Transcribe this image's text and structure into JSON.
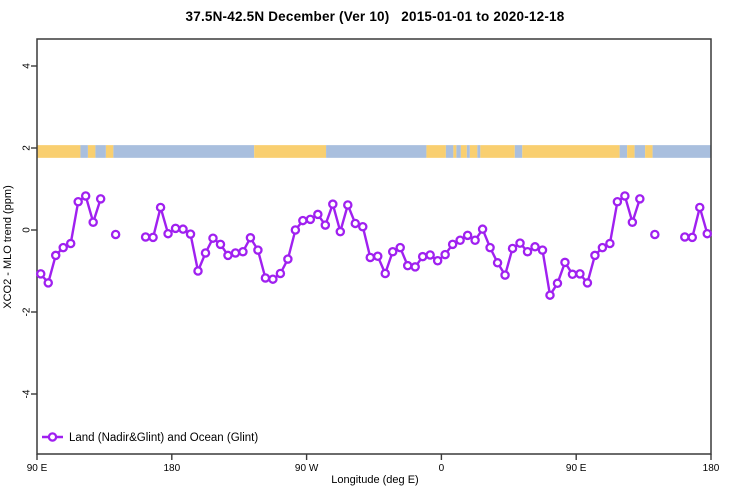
{
  "title": "37.5N-42.5N December (Ver 10)   2015-01-01 to 2020-12-18",
  "colors": {
    "series": "#A020F0",
    "marker_fill": "#ffffff",
    "land": "#F9CF70",
    "ocean": "#A9BFDE",
    "frame": "#3a3a3a",
    "text": "#000000",
    "background": "#ffffff"
  },
  "legend": {
    "label": "Land (Nadir&Glint) and Ocean (Glint)",
    "marker": "open-circle-on-line"
  },
  "chart_data": {
    "type": "line",
    "title": "37.5N-42.5N December (Ver 10)   2015-01-01 to 2020-12-18",
    "xlabel": "Longitude (deg E)",
    "ylabel": "XCO2 - MLO trend (ppm)",
    "axis_note": "x axis spans 450 degrees of longitude, wrapping 90E > 180 > 90W > 0 > 90E > 180",
    "xlim": [
      90,
      540
    ],
    "ylim": [
      -5.5,
      4.7
    ],
    "x_ticks": [
      {
        "lon": 90,
        "label": "90 E"
      },
      {
        "lon": 180,
        "label": "180"
      },
      {
        "lon": 270,
        "label": "90 W"
      },
      {
        "lon": 360,
        "label": "0"
      },
      {
        "lon": 450,
        "label": "90 E"
      },
      {
        "lon": 540,
        "label": "180"
      }
    ],
    "y_ticks": [
      {
        "value": -4,
        "label": "-4"
      },
      {
        "value": -2,
        "label": "-2"
      },
      {
        "value": 0,
        "label": "0"
      },
      {
        "value": 2,
        "label": "2"
      },
      {
        "value": 4,
        "label": "4"
      }
    ],
    "map_band": {
      "description": "land/ocean strip along the 37.5N-42.5N latitude band",
      "top_ppm": 2.07,
      "bottom_ppm": 1.76,
      "segments": [
        {
          "from": 90,
          "to": 119,
          "type": "land"
        },
        {
          "from": 119,
          "to": 124,
          "type": "ocean"
        },
        {
          "from": 124,
          "to": 129,
          "type": "land"
        },
        {
          "from": 129,
          "to": 136,
          "type": "ocean"
        },
        {
          "from": 136,
          "to": 141,
          "type": "land"
        },
        {
          "from": 141,
          "to": 235,
          "type": "ocean"
        },
        {
          "from": 235,
          "to": 283,
          "type": "land"
        },
        {
          "from": 283,
          "to": 350,
          "type": "ocean"
        },
        {
          "from": 350,
          "to": 363,
          "type": "land"
        },
        {
          "from": 363,
          "to": 368,
          "type": "ocean"
        },
        {
          "from": 368,
          "to": 370,
          "type": "land"
        },
        {
          "from": 370,
          "to": 373,
          "type": "ocean"
        },
        {
          "from": 373,
          "to": 377,
          "type": "land"
        },
        {
          "from": 377,
          "to": 379,
          "type": "ocean"
        },
        {
          "from": 379,
          "to": 384,
          "type": "land"
        },
        {
          "from": 384,
          "to": 386,
          "type": "ocean"
        },
        {
          "from": 386,
          "to": 409,
          "type": "land"
        },
        {
          "from": 409,
          "to": 414,
          "type": "ocean"
        },
        {
          "from": 414,
          "to": 479,
          "type": "land"
        },
        {
          "from": 479,
          "to": 484,
          "type": "ocean"
        },
        {
          "from": 484,
          "to": 489,
          "type": "land"
        },
        {
          "from": 489,
          "to": 496,
          "type": "ocean"
        },
        {
          "from": 496,
          "to": 501,
          "type": "land"
        },
        {
          "from": 501,
          "to": 540,
          "type": "ocean"
        }
      ]
    },
    "series": [
      {
        "name": "Land (Nadir&Glint) and Ocean (Glint)",
        "color": "#A020F0",
        "marker": "open-circle",
        "runs": [
          [
            {
              "lon": 92.5,
              "ppm": -1.07
            },
            {
              "lon": 97.5,
              "ppm": -1.29
            },
            {
              "lon": 102.5,
              "ppm": -0.62
            },
            {
              "lon": 107.5,
              "ppm": -0.43
            },
            {
              "lon": 112.5,
              "ppm": -0.33
            },
            {
              "lon": 117.5,
              "ppm": 0.69
            },
            {
              "lon": 122.5,
              "ppm": 0.83
            },
            {
              "lon": 127.5,
              "ppm": 0.19
            },
            {
              "lon": 132.5,
              "ppm": 0.76
            }
          ],
          [
            {
              "lon": 142.5,
              "ppm": -0.11
            }
          ],
          [
            {
              "lon": 162.5,
              "ppm": -0.17
            },
            {
              "lon": 167.5,
              "ppm": -0.18
            },
            {
              "lon": 172.5,
              "ppm": 0.55
            },
            {
              "lon": 177.5,
              "ppm": -0.09
            },
            {
              "lon": 182.5,
              "ppm": 0.04
            },
            {
              "lon": 187.5,
              "ppm": 0.02
            },
            {
              "lon": 192.5,
              "ppm": -0.1
            },
            {
              "lon": 197.5,
              "ppm": -1.0
            },
            {
              "lon": 202.5,
              "ppm": -0.56
            },
            {
              "lon": 207.5,
              "ppm": -0.2
            },
            {
              "lon": 212.5,
              "ppm": -0.35
            },
            {
              "lon": 217.5,
              "ppm": -0.62
            },
            {
              "lon": 222.5,
              "ppm": -0.56
            },
            {
              "lon": 227.5,
              "ppm": -0.53
            },
            {
              "lon": 232.5,
              "ppm": -0.19
            },
            {
              "lon": 237.5,
              "ppm": -0.49
            },
            {
              "lon": 242.5,
              "ppm": -1.17
            },
            {
              "lon": 247.5,
              "ppm": -1.2
            },
            {
              "lon": 252.5,
              "ppm": -1.06
            },
            {
              "lon": 257.5,
              "ppm": -0.71
            },
            {
              "lon": 262.5,
              "ppm": 0.0
            },
            {
              "lon": 267.5,
              "ppm": 0.23
            },
            {
              "lon": 272.5,
              "ppm": 0.26
            },
            {
              "lon": 277.5,
              "ppm": 0.38
            },
            {
              "lon": 282.5,
              "ppm": 0.12
            },
            {
              "lon": 287.5,
              "ppm": 0.63
            },
            {
              "lon": 292.5,
              "ppm": -0.04
            },
            {
              "lon": 297.5,
              "ppm": 0.61
            },
            {
              "lon": 302.5,
              "ppm": 0.16
            },
            {
              "lon": 307.5,
              "ppm": 0.08
            },
            {
              "lon": 312.5,
              "ppm": -0.67
            },
            {
              "lon": 317.5,
              "ppm": -0.64
            },
            {
              "lon": 322.5,
              "ppm": -1.06
            },
            {
              "lon": 327.5,
              "ppm": -0.53
            },
            {
              "lon": 332.5,
              "ppm": -0.43
            },
            {
              "lon": 337.5,
              "ppm": -0.87
            },
            {
              "lon": 342.5,
              "ppm": -0.9
            },
            {
              "lon": 347.5,
              "ppm": -0.65
            },
            {
              "lon": 352.5,
              "ppm": -0.61
            },
            {
              "lon": 357.5,
              "ppm": -0.75
            },
            {
              "lon": 362.5,
              "ppm": -0.6
            },
            {
              "lon": 367.5,
              "ppm": -0.35
            },
            {
              "lon": 372.5,
              "ppm": -0.25
            },
            {
              "lon": 377.5,
              "ppm": -0.13
            },
            {
              "lon": 382.5,
              "ppm": -0.25
            },
            {
              "lon": 387.5,
              "ppm": 0.02
            },
            {
              "lon": 392.5,
              "ppm": -0.43
            },
            {
              "lon": 397.5,
              "ppm": -0.8
            },
            {
              "lon": 402.5,
              "ppm": -1.1
            },
            {
              "lon": 407.5,
              "ppm": -0.45
            },
            {
              "lon": 412.5,
              "ppm": -0.32
            },
            {
              "lon": 417.5,
              "ppm": -0.53
            },
            {
              "lon": 422.5,
              "ppm": -0.41
            },
            {
              "lon": 427.5,
              "ppm": -0.49
            },
            {
              "lon": 432.5,
              "ppm": -1.59
            },
            {
              "lon": 437.5,
              "ppm": -1.3
            },
            {
              "lon": 442.5,
              "ppm": -0.79
            },
            {
              "lon": 447.5,
              "ppm": -1.08
            },
            {
              "lon": 452.5,
              "ppm": -1.07
            },
            {
              "lon": 457.5,
              "ppm": -1.29
            },
            {
              "lon": 462.5,
              "ppm": -0.62
            },
            {
              "lon": 467.5,
              "ppm": -0.43
            },
            {
              "lon": 472.5,
              "ppm": -0.33
            },
            {
              "lon": 477.5,
              "ppm": 0.69
            },
            {
              "lon": 482.5,
              "ppm": 0.83
            },
            {
              "lon": 487.5,
              "ppm": 0.19
            },
            {
              "lon": 492.5,
              "ppm": 0.76
            }
          ],
          [
            {
              "lon": 502.5,
              "ppm": -0.11
            }
          ],
          [
            {
              "lon": 522.5,
              "ppm": -0.17
            },
            {
              "lon": 527.5,
              "ppm": -0.18
            },
            {
              "lon": 532.5,
              "ppm": 0.55
            },
            {
              "lon": 537.5,
              "ppm": -0.09
            }
          ]
        ]
      }
    ]
  }
}
